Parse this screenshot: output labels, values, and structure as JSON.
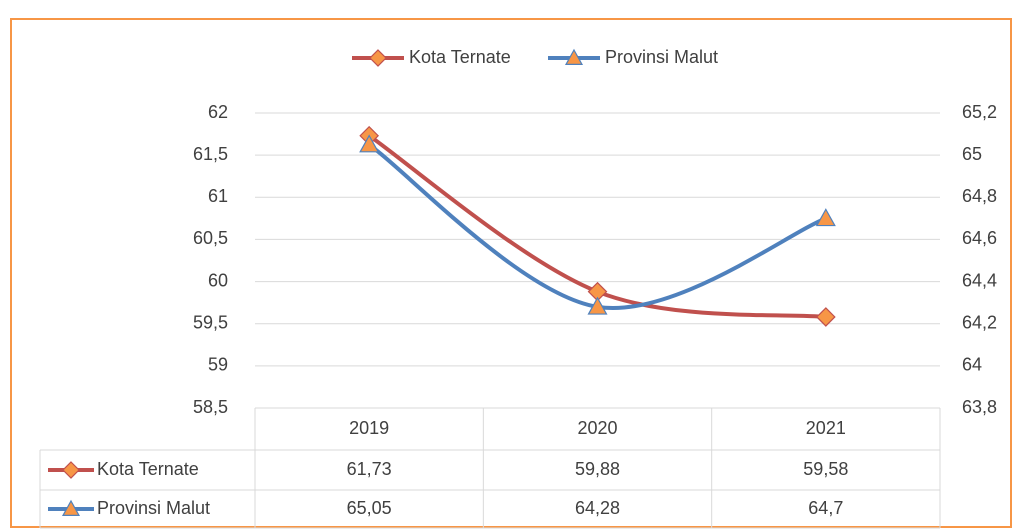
{
  "chart_data": {
    "type": "line",
    "categories": [
      "2019",
      "2020",
      "2021"
    ],
    "series": [
      {
        "name": "Kota Ternate",
        "color": "#c0504d",
        "values": [
          61.73,
          59.88,
          59.58
        ],
        "value_labels": [
          "61,73",
          "59,88",
          "59,58"
        ]
      },
      {
        "name": "Provinsi Malut",
        "color": "#4f81bd",
        "axis": "y2",
        "values": [
          65.05,
          64.28,
          64.7
        ],
        "value_labels": [
          "65,05",
          "64,28",
          "64,7"
        ]
      }
    ],
    "ylim": [
      58.5,
      62
    ],
    "yticks": [
      {
        "value": 58.5,
        "label": "58,5"
      },
      59,
      {
        "value": 59.5,
        "label": "59,5"
      },
      60,
      {
        "value": 60.5,
        "label": "60,5"
      },
      61,
      {
        "value": 61.5,
        "label": "61,5"
      },
      62
    ],
    "y2lim": [
      63.8,
      65.2
    ],
    "y2ticks": [
      {
        "value": 63.8,
        "label": "63,8"
      },
      64,
      {
        "value": 64.2,
        "label": "64,2"
      },
      {
        "value": 64.4,
        "label": "64,4"
      },
      {
        "value": 64.6,
        "label": "64,6"
      },
      {
        "value": 64.8,
        "label": "64,8"
      },
      65,
      {
        "value": 65.2,
        "label": "65,2"
      }
    ],
    "grid": true,
    "legend": "top"
  }
}
